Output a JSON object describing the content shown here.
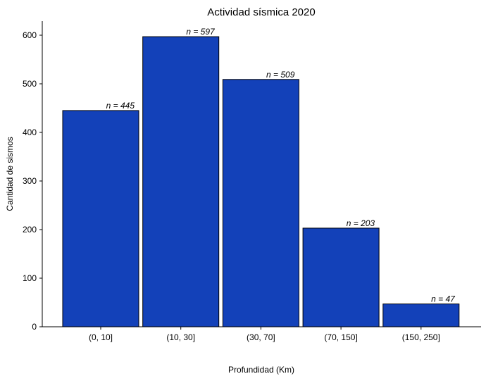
{
  "chart_data": {
    "type": "bar",
    "title": "Actividad sísmica 2020",
    "xlabel": "Profundidad (Km)",
    "ylabel": "Cantidad de sismos",
    "categories": [
      "(0, 10]",
      "(10, 30]",
      "(30, 70]",
      "(70, 150]",
      "(150, 250]"
    ],
    "values": [
      445,
      597,
      509,
      203,
      47
    ],
    "bar_labels": [
      "n = 445",
      "n = 597",
      "n = 509",
      "n = 203",
      "n = 47"
    ],
    "ylim": [
      0,
      627
    ],
    "yticks": [
      0,
      100,
      200,
      300,
      400,
      500,
      600
    ],
    "grid": false,
    "colors": {
      "bar_fill": "#1341b9",
      "bar_edge": "#000000"
    }
  }
}
